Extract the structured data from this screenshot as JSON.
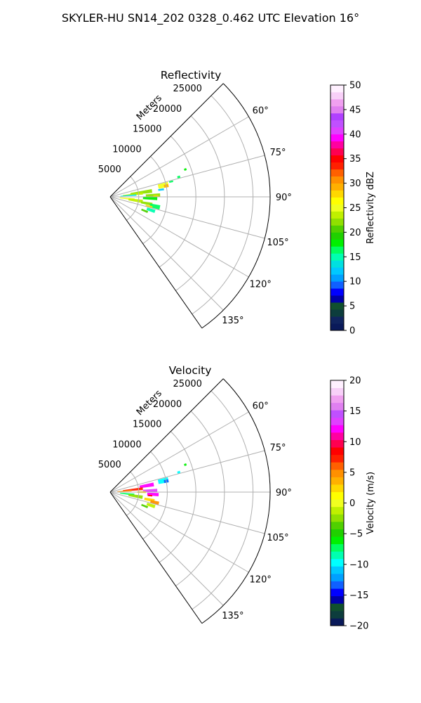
{
  "figure": {
    "suptitle": "SKYLER-HU  SN14_202  0328_0.462 UTC Elevation 16°"
  },
  "chart_data": [
    {
      "type": "heatmap",
      "projection": "polar-sector",
      "title": "Reflectivity",
      "radial_label": "Meters",
      "radial_ticks": [
        "5000",
        "10000",
        "15000",
        "20000",
        "25000"
      ],
      "radial_values": [
        5000,
        10000,
        15000,
        20000,
        25000
      ],
      "rmax": 28000,
      "theta_ticks": [
        "60°",
        "75°",
        "90°",
        "105°",
        "120°",
        "135°"
      ],
      "theta_values": [
        60,
        75,
        90,
        105,
        120,
        135
      ],
      "theta_range": [
        45,
        145
      ],
      "grid": true,
      "colorbar": {
        "label": "Reflectivity dBZ",
        "range": [
          0,
          50
        ],
        "ticks": [
          "0",
          "5",
          "10",
          "15",
          "20",
          "25",
          "30",
          "35",
          "40",
          "45",
          "50"
        ],
        "tick_values": [
          0,
          5,
          10,
          15,
          20,
          25,
          30,
          35,
          40,
          45,
          50
        ],
        "colors": [
          "#0a1a5a",
          "#10245f",
          "#0d3d3d",
          "#10502e",
          "#0000a8",
          "#0000ff",
          "#1060ff",
          "#00a0ff",
          "#00c8ff",
          "#00e0e0",
          "#00ffb0",
          "#00ff60",
          "#00f000",
          "#20d000",
          "#50d000",
          "#90e000",
          "#c0f000",
          "#f0ff20",
          "#ffff00",
          "#ffd800",
          "#ffb000",
          "#ff9000",
          "#ff6000",
          "#ff2000",
          "#ff0000",
          "#ff0050",
          "#ff00a0",
          "#ff00ff",
          "#e040ff",
          "#c050ff",
          "#b040ff",
          "#e080f0",
          "#f0a0f0",
          "#f8d0f8",
          "#fff0ff"
        ]
      },
      "echo_cells": [
        {
          "az": 78,
          "r": 9500,
          "dr": 1800,
          "daz": 5,
          "color": "#f0ff20"
        },
        {
          "az": 79,
          "r": 10000,
          "dr": 800,
          "daz": 3,
          "color": "#ffb000"
        },
        {
          "az": 76,
          "r": 11000,
          "dr": 700,
          "daz": 1.5,
          "color": "#00ff60"
        },
        {
          "az": 82,
          "r": 5500,
          "dr": 3800,
          "daz": 5,
          "color": "#90e000"
        },
        {
          "az": 84,
          "r": 4000,
          "dr": 3500,
          "daz": 4,
          "color": "#c0f000"
        },
        {
          "az": 86,
          "r": 3200,
          "dr": 2800,
          "daz": 3,
          "color": "#00e0e0"
        },
        {
          "az": 88,
          "r": 7500,
          "dr": 2500,
          "daz": 4,
          "color": "#90e000"
        },
        {
          "az": 89,
          "r": 8000,
          "dr": 900,
          "daz": 2,
          "color": "#ffd800"
        },
        {
          "az": 92,
          "r": 7000,
          "dr": 2500,
          "daz": 4,
          "color": "#00f000"
        },
        {
          "az": 96,
          "r": 3000,
          "dr": 2600,
          "daz": 5,
          "color": "#f0ff20"
        },
        {
          "az": 98,
          "r": 4500,
          "dr": 2500,
          "daz": 6,
          "color": "#c0f000"
        },
        {
          "az": 100,
          "r": 6500,
          "dr": 2000,
          "daz": 4,
          "color": "#90e000"
        },
        {
          "az": 102,
          "r": 8000,
          "dr": 1800,
          "daz": 5,
          "color": "#00ff60"
        },
        {
          "az": 104,
          "r": 7000,
          "dr": 1200,
          "daz": 3,
          "color": "#ffd800"
        },
        {
          "az": 108,
          "r": 7500,
          "dr": 1500,
          "daz": 4,
          "color": "#00ffb0"
        },
        {
          "az": 112,
          "r": 6500,
          "dr": 1200,
          "daz": 3,
          "color": "#50d000"
        },
        {
          "az": 82,
          "r": 9000,
          "dr": 1000,
          "daz": 2,
          "color": "#00c8ff"
        },
        {
          "az": 74,
          "r": 12500,
          "dr": 500,
          "daz": 2,
          "color": "#00ff60"
        },
        {
          "az": 70,
          "r": 14000,
          "dr": 400,
          "daz": 1.5,
          "color": "#00f000"
        }
      ]
    },
    {
      "type": "heatmap",
      "projection": "polar-sector",
      "title": "Velocity",
      "radial_label": "Meters",
      "radial_ticks": [
        "5000",
        "10000",
        "15000",
        "20000",
        "25000"
      ],
      "radial_values": [
        5000,
        10000,
        15000,
        20000,
        25000
      ],
      "rmax": 28000,
      "theta_ticks": [
        "60°",
        "75°",
        "90°",
        "105°",
        "120°",
        "135°"
      ],
      "theta_values": [
        60,
        75,
        90,
        105,
        120,
        135
      ],
      "theta_range": [
        45,
        145
      ],
      "grid": true,
      "colorbar": {
        "label": "Velocity (m/s)",
        "range": [
          -20,
          20
        ],
        "ticks": [
          "−20",
          "−15",
          "−10",
          "−5",
          "0",
          "5",
          "10",
          "15",
          "20"
        ],
        "tick_values": [
          -20,
          -15,
          -10,
          -5,
          0,
          5,
          10,
          15,
          20
        ],
        "colors": [
          "#0a1a5a",
          "#0d3d3d",
          "#10502e",
          "#0000a8",
          "#0000ff",
          "#1060ff",
          "#00a0ff",
          "#00c8ff",
          "#00ffff",
          "#00ffb0",
          "#00ff60",
          "#00f000",
          "#20d000",
          "#50d000",
          "#90e000",
          "#c0f000",
          "#f0ff20",
          "#ffff00",
          "#ffd800",
          "#ffb000",
          "#ff9000",
          "#ff6000",
          "#ff2000",
          "#ff0000",
          "#ff0050",
          "#ff00a0",
          "#ff00ff",
          "#e040ff",
          "#c050ff",
          "#e080f0",
          "#f0a0f0",
          "#f8d0f8",
          "#fff0ff"
        ]
      },
      "echo_cells": [
        {
          "az": 78,
          "r": 9500,
          "dr": 1800,
          "daz": 5,
          "color": "#00ffff"
        },
        {
          "az": 79,
          "r": 10000,
          "dr": 800,
          "daz": 3,
          "color": "#1060ff"
        },
        {
          "az": 80,
          "r": 6500,
          "dr": 2500,
          "daz": 5,
          "color": "#ff00ff"
        },
        {
          "az": 84,
          "r": 4000,
          "dr": 3500,
          "daz": 5,
          "color": "#ff2000"
        },
        {
          "az": 86,
          "r": 2500,
          "dr": 2500,
          "daz": 4,
          "color": "#ff9000"
        },
        {
          "az": 88,
          "r": 7000,
          "dr": 2500,
          "daz": 4,
          "color": "#e040ff"
        },
        {
          "az": 90,
          "r": 5500,
          "dr": 1500,
          "daz": 3,
          "color": "#ffd800"
        },
        {
          "az": 93,
          "r": 7500,
          "dr": 2000,
          "daz": 4,
          "color": "#ff00ff"
        },
        {
          "az": 96,
          "r": 3000,
          "dr": 2500,
          "daz": 5,
          "color": "#00ff60"
        },
        {
          "az": 99,
          "r": 4500,
          "dr": 2500,
          "daz": 6,
          "color": "#90e000"
        },
        {
          "az": 101,
          "r": 7000,
          "dr": 1800,
          "daz": 4,
          "color": "#ffd800"
        },
        {
          "az": 103,
          "r": 8000,
          "dr": 1500,
          "daz": 4,
          "color": "#ff9000"
        },
        {
          "az": 108,
          "r": 7500,
          "dr": 1500,
          "daz": 4,
          "color": "#c0f000"
        },
        {
          "az": 112,
          "r": 6500,
          "dr": 1200,
          "daz": 3,
          "color": "#50d000"
        },
        {
          "az": 95,
          "r": 7000,
          "dr": 800,
          "daz": 2,
          "color": "#ff0000"
        },
        {
          "az": 74,
          "r": 12500,
          "dr": 500,
          "daz": 2,
          "color": "#00ffff"
        },
        {
          "az": 70,
          "r": 14000,
          "dr": 400,
          "daz": 1.5,
          "color": "#00f000"
        }
      ]
    }
  ]
}
